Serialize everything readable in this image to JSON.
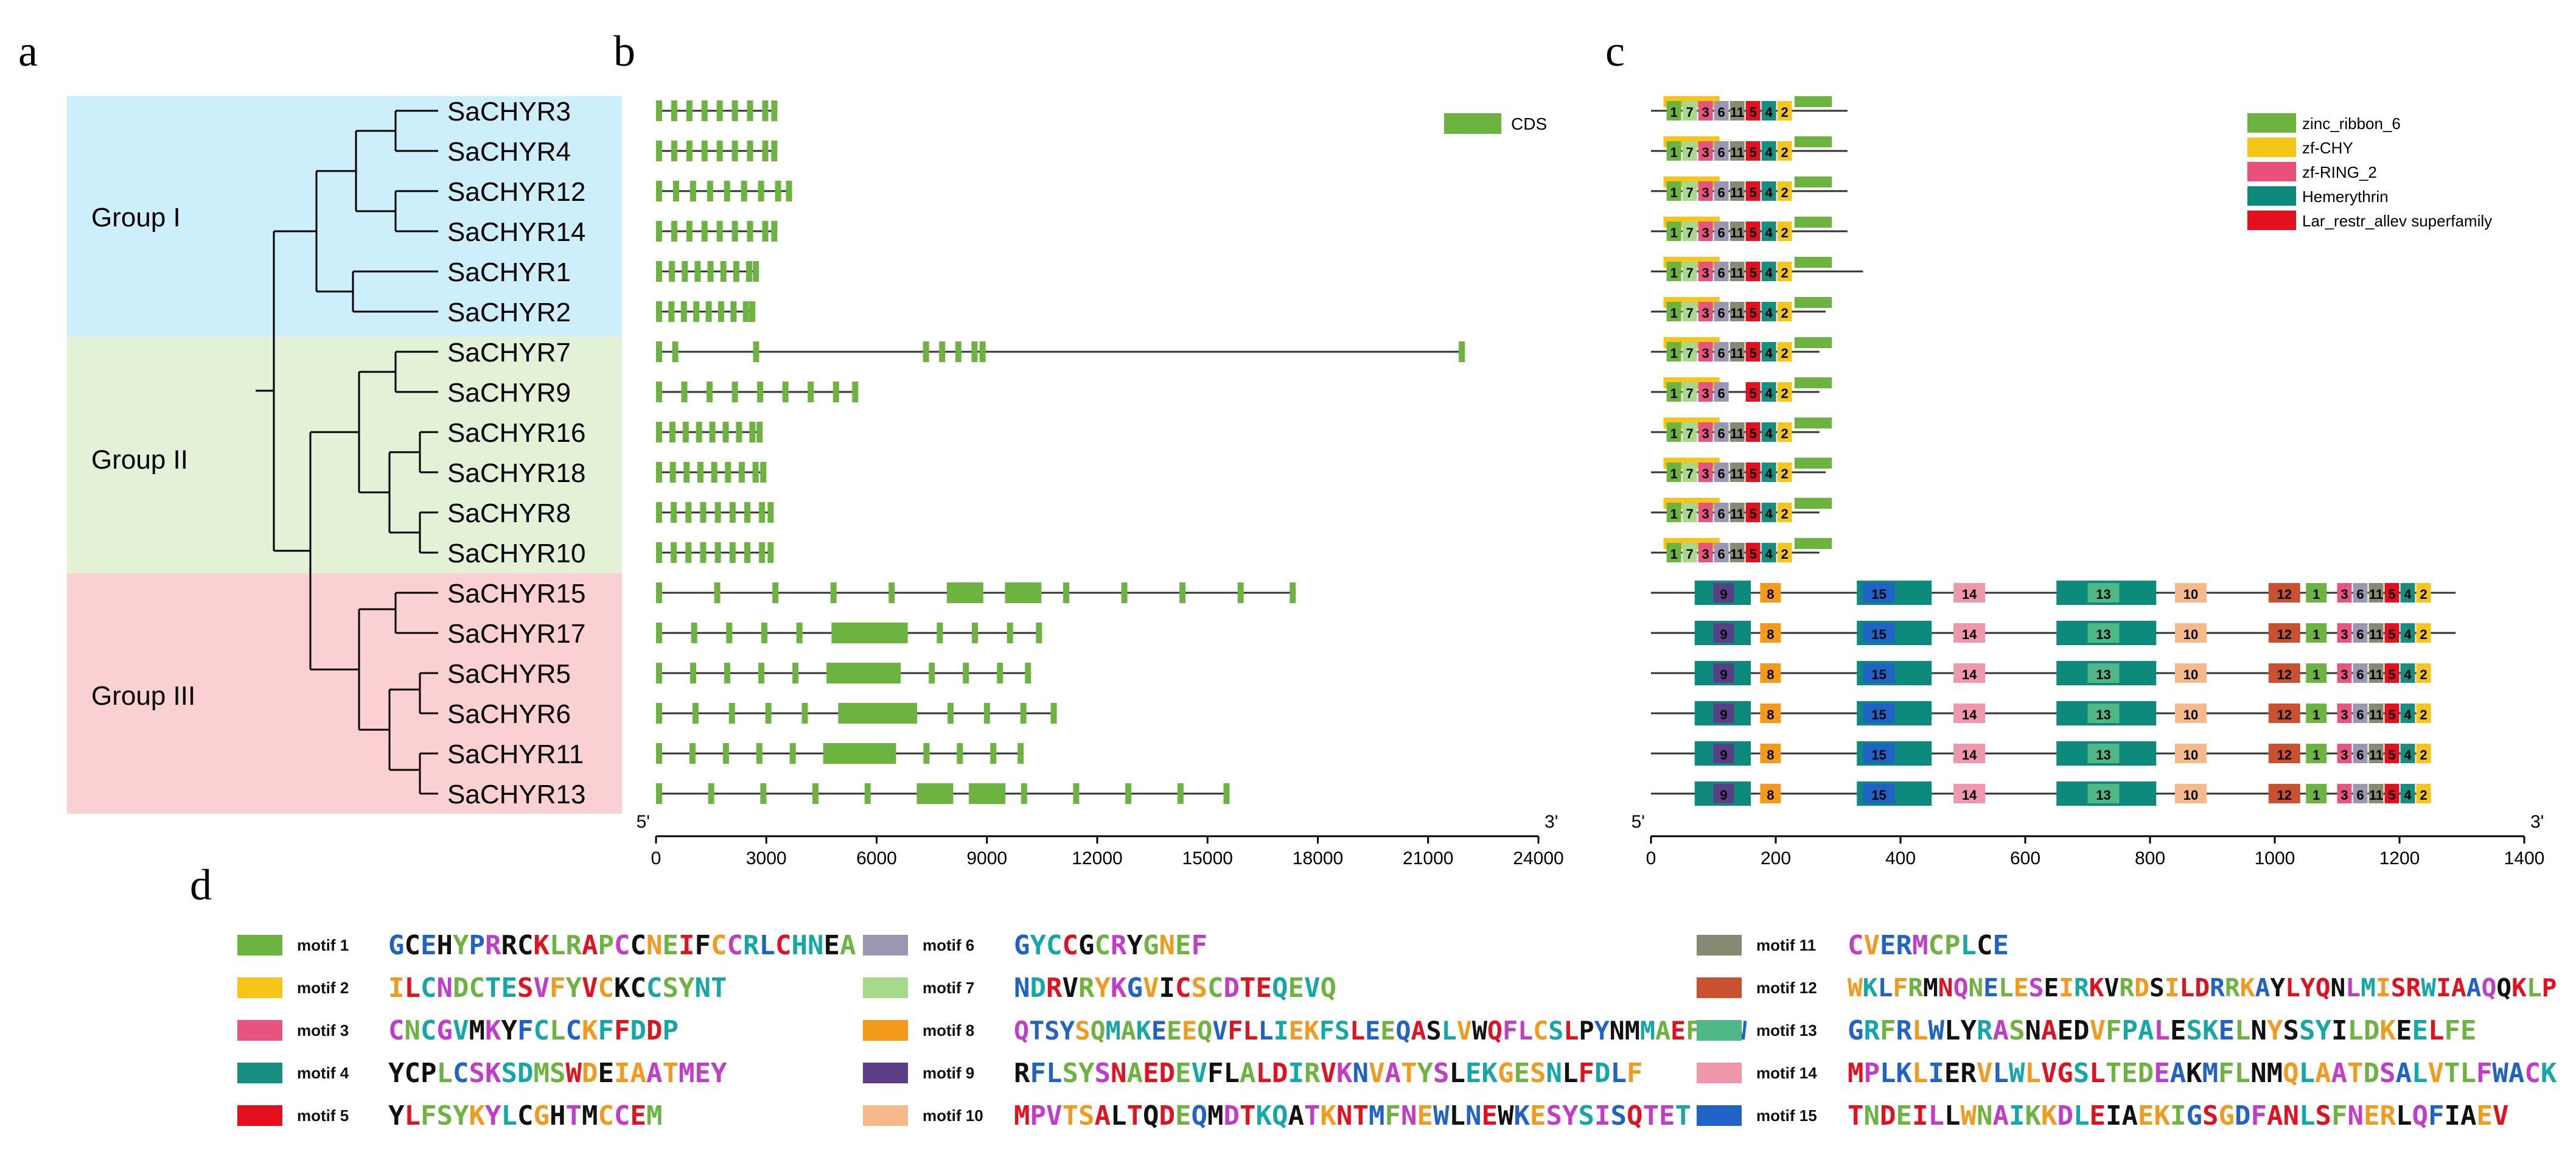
{
  "panels": {
    "a": "a",
    "b": "b",
    "c": "c",
    "d": "d"
  },
  "groups": [
    {
      "label": "Group I",
      "color": "#cdeefb"
    },
    {
      "label": "Group II",
      "color": "#e3f1d6"
    },
    {
      "label": "Group III",
      "color": "#fbd0d2"
    }
  ],
  "genes": [
    "SaCHYR3",
    "SaCHYR4",
    "SaCHYR12",
    "SaCHYR14",
    "SaCHYR1",
    "SaCHYR2",
    "SaCHYR7",
    "SaCHYR9",
    "SaCHYR16",
    "SaCHYR18",
    "SaCHYR8",
    "SaCHYR10",
    "SaCHYR15",
    "SaCHYR17",
    "SaCHYR5",
    "SaCHYR6",
    "SaCHYR11",
    "SaCHYR13"
  ],
  "gene_structure": {
    "legend": "CDS",
    "cds_color": "#6db33f",
    "axis_ticks": [
      "0",
      "3000",
      "6000",
      "9000",
      "12000",
      "15000",
      "18000",
      "21000",
      "24000"
    ],
    "axis_max": 24000,
    "end5": "5'",
    "end3": "3'",
    "gene_lengths": [
      3300,
      3300,
      3700,
      3300,
      2800,
      2700,
      22000,
      5500,
      2900,
      3000,
      3200,
      3200,
      17400,
      10500,
      10200,
      10900,
      10000,
      15600
    ]
  },
  "protein_domains": {
    "axis_ticks": [
      "0",
      "200",
      "400",
      "600",
      "800",
      "1000",
      "1200",
      "1400"
    ],
    "axis_max": 1400,
    "end5": "5'",
    "end3": "3'",
    "protein_lengths": [
      315,
      315,
      315,
      315,
      340,
      280,
      270,
      270,
      270,
      280,
      270,
      270,
      1290,
      1290,
      1240,
      1240,
      1230,
      1230
    ],
    "legend": [
      {
        "name": "zinc_ribbon_6",
        "color": "#6db33f"
      },
      {
        "name": "zf-CHY",
        "color": "#f5c518"
      },
      {
        "name": "zf-RING_2",
        "color": "#e9507a"
      },
      {
        "name": "Hemerythrin",
        "color": "#0e8a7c"
      },
      {
        "name": "Lar_restr_allev superfamily",
        "color": "#e3101e"
      }
    ]
  },
  "motif_colors": {
    "1": "#6db33f",
    "2": "#f5c518",
    "3": "#e75480",
    "4": "#178f80",
    "5": "#e3101e",
    "6": "#9b97b3",
    "7": "#a6d98a",
    "8": "#f39a1b",
    "9": "#5b3f86",
    "10": "#f5b98a",
    "11": "#868a73",
    "12": "#c9512f",
    "13": "#4fb889",
    "14": "#ef97ad",
    "15": "#1f63c6"
  },
  "motifs": [
    {
      "label": "motif 1",
      "color": "#6db33f",
      "seq": "GCEHYPRRCKLRAPCCNEIFCCRLCHNEA"
    },
    {
      "label": "motif 2",
      "color": "#f5c518",
      "seq": "ILCNDCTESVFYVCKCCSYNT"
    },
    {
      "label": "motif 3",
      "color": "#e75480",
      "seq": "CNCGVMKYFCLCKFFDDP"
    },
    {
      "label": "motif 4",
      "color": "#178f80",
      "seq": "YCPLCSKSDMSWDEIAATMEY"
    },
    {
      "label": "motif 5",
      "color": "#e3101e",
      "seq": "YLFSYKYLCGHTMCCEM"
    },
    {
      "label": "motif 6",
      "color": "#9b97b3",
      "seq": "GYCCGCRYGNEF"
    },
    {
      "label": "motif 7",
      "color": "#a6d98a",
      "seq": "NDRVRYKGVICSCDTEQEVQ"
    },
    {
      "label": "motif 8",
      "color": "#f39a1b",
      "seq": "QTSYSQMAKEEEQVFLLIEKFSLEEQASLVWQFLCSLPYNMMAEFLPW"
    },
    {
      "label": "motif 9",
      "color": "#5b3f86",
      "seq": "RFLSYSNAEDEVFLALDIRVKNVATYSLEKGESNLFDLF"
    },
    {
      "label": "motif 10",
      "color": "#f5b98a",
      "seq": "MPVTSALTQDEQMDTKQATKNTMFNEWLNEWKESYSISQTET"
    },
    {
      "label": "motif 11",
      "color": "#868a73",
      "seq": "CVERMCPLCE"
    },
    {
      "label": "motif 12",
      "color": "#c9512f",
      "seq": "WKLFRMNQNELESEIRKVRDSILDRRKAYLYQNLMISRWIAAQQKLP"
    },
    {
      "label": "motif 13",
      "color": "#4fb889",
      "seq": "GRFRLWLYRASNAEDVFPALESKELNYSSYILDKEELFE"
    },
    {
      "label": "motif 14",
      "color": "#ef97ad",
      "seq": "MPLKLIERVLWLVGSLTEDEAKMFLNMQLAATDSALVTLFWACK"
    },
    {
      "label": "motif 15",
      "color": "#1f63c6",
      "seq": "TNDEILLWNAIKKDLEIAEKIGSGDFANLSFNERLQFIAEV"
    }
  ]
}
